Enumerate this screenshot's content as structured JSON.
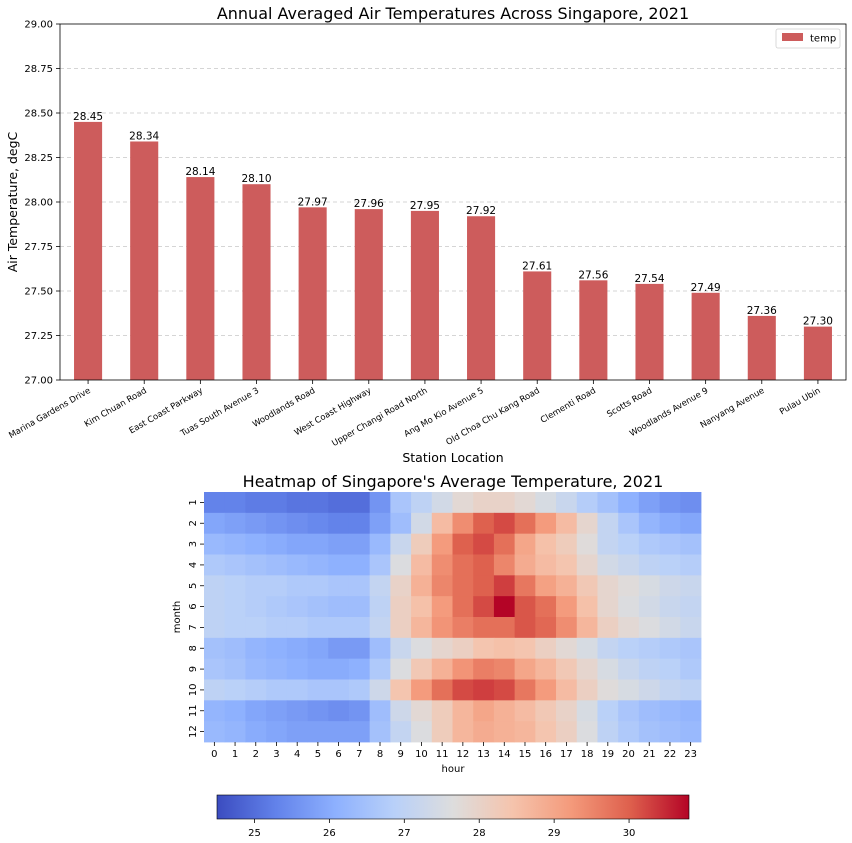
{
  "chart_data": [
    {
      "type": "bar",
      "title": "Annual Averaged Air Temperatures Across Singapore, 2021",
      "xlabel": "Station Location",
      "ylabel": "Air Temperature, degC",
      "ylim": [
        27.0,
        29.0
      ],
      "yticks": [
        "27.00",
        "27.25",
        "27.50",
        "27.75",
        "28.00",
        "28.25",
        "28.50",
        "28.75",
        "29.00"
      ],
      "grid": true,
      "legend": {
        "position": "top-right",
        "entries": [
          "temp"
        ]
      },
      "bar_color": "#cd5c5c",
      "categories": [
        "Marina Gardens Drive",
        "Kim Chuan Road",
        "East Coast Parkway",
        "Tuas South Avenue 3",
        "Woodlands Road",
        "West Coast Highway",
        "Upper Changi Road North",
        "Ang Mo Kio Avenue 5",
        "Old Choa Chu Kang Road",
        "Clementi Road",
        "Scotts Road",
        "Woodlands Avenue 9",
        "Nanyang Avenue",
        "Pulau Ubin"
      ],
      "values": [
        28.45,
        28.34,
        28.14,
        28.1,
        27.97,
        27.96,
        27.95,
        27.92,
        27.61,
        27.56,
        27.54,
        27.49,
        27.36,
        27.3
      ],
      "value_labels": [
        "28.45",
        "28.34",
        "28.14",
        "28.10",
        "27.97",
        "27.96",
        "27.95",
        "27.92",
        "27.61",
        "27.56",
        "27.54",
        "27.49",
        "27.36",
        "27.30"
      ]
    },
    {
      "type": "heatmap",
      "title": "Heatmap of Singapore's Average Temperature, 2021",
      "xlabel": "hour",
      "ylabel": "month",
      "x": [
        "0",
        "1",
        "2",
        "3",
        "4",
        "5",
        "6",
        "7",
        "8",
        "9",
        "10",
        "11",
        "12",
        "13",
        "14",
        "15",
        "16",
        "17",
        "18",
        "19",
        "20",
        "21",
        "22",
        "23"
      ],
      "y": [
        "1",
        "2",
        "3",
        "4",
        "5",
        "6",
        "7",
        "8",
        "9",
        "10",
        "11",
        "12"
      ],
      "colormap": "coolwarm",
      "vmin": 24.5,
      "vmax": 30.8,
      "colorbar_ticks": [
        "25",
        "26",
        "27",
        "28",
        "29",
        "30"
      ],
      "values": [
        [
          25.3,
          25.3,
          25.2,
          25.2,
          25.1,
          25.1,
          25.0,
          25.0,
          25.6,
          26.6,
          27.0,
          27.4,
          27.8,
          28.0,
          28.0,
          27.8,
          27.5,
          27.2,
          26.8,
          26.5,
          26.1,
          25.8,
          25.6,
          25.5
        ],
        [
          25.9,
          25.8,
          25.7,
          25.6,
          25.5,
          25.4,
          25.3,
          25.3,
          25.8,
          26.4,
          27.4,
          28.6,
          29.4,
          30.0,
          30.2,
          29.8,
          29.2,
          28.6,
          27.9,
          27.1,
          26.6,
          26.2,
          26.0,
          25.9
        ],
        [
          26.3,
          26.2,
          26.1,
          26.0,
          25.9,
          25.9,
          25.8,
          25.8,
          26.3,
          27.2,
          28.2,
          29.2,
          30.0,
          30.2,
          29.8,
          29.0,
          28.5,
          28.2,
          27.7,
          27.1,
          26.9,
          26.7,
          26.6,
          26.5
        ],
        [
          26.7,
          26.6,
          26.5,
          26.4,
          26.3,
          26.2,
          26.1,
          26.1,
          26.6,
          27.6,
          28.6,
          29.4,
          29.8,
          30.0,
          29.5,
          28.9,
          28.6,
          28.4,
          27.9,
          27.4,
          27.2,
          27.0,
          26.9,
          26.8
        ],
        [
          27.0,
          26.9,
          26.8,
          26.8,
          26.7,
          26.7,
          26.6,
          26.6,
          27.1,
          28.0,
          28.8,
          29.5,
          29.8,
          30.0,
          30.3,
          29.7,
          29.1,
          28.8,
          28.3,
          27.9,
          27.7,
          27.5,
          27.3,
          27.2
        ],
        [
          27.0,
          26.9,
          26.8,
          26.7,
          26.6,
          26.5,
          26.4,
          26.4,
          27.0,
          28.1,
          28.5,
          29.2,
          29.8,
          30.2,
          30.8,
          30.1,
          29.8,
          29.2,
          28.5,
          27.9,
          27.6,
          27.4,
          27.2,
          27.1
        ],
        [
          27.0,
          26.9,
          26.9,
          26.8,
          26.8,
          26.7,
          26.7,
          26.7,
          27.1,
          28.1,
          28.7,
          29.3,
          29.6,
          29.8,
          29.8,
          30.1,
          29.9,
          29.4,
          28.7,
          28.1,
          27.8,
          27.6,
          27.4,
          27.2
        ],
        [
          26.5,
          26.4,
          26.2,
          26.1,
          26.0,
          25.9,
          25.7,
          25.7,
          26.4,
          27.2,
          27.6,
          27.9,
          28.1,
          28.4,
          28.5,
          28.4,
          28.1,
          27.8,
          27.5,
          27.1,
          26.9,
          26.8,
          26.7,
          26.6
        ],
        [
          26.6,
          26.5,
          26.3,
          26.2,
          26.1,
          26.0,
          26.0,
          26.1,
          26.7,
          27.6,
          28.3,
          28.8,
          29.3,
          29.6,
          29.5,
          29.0,
          28.7,
          28.3,
          27.9,
          27.5,
          27.2,
          27.0,
          26.9,
          26.7
        ],
        [
          27.0,
          26.9,
          26.8,
          26.7,
          26.7,
          26.6,
          26.6,
          26.7,
          27.3,
          28.4,
          29.2,
          29.8,
          30.2,
          30.3,
          30.2,
          29.7,
          29.2,
          28.6,
          28.1,
          27.7,
          27.5,
          27.3,
          27.1,
          27.0
        ],
        [
          26.2,
          26.1,
          25.9,
          25.8,
          25.7,
          25.6,
          25.5,
          25.6,
          26.4,
          27.3,
          27.8,
          28.2,
          28.7,
          29.0,
          28.8,
          28.6,
          28.3,
          28.0,
          27.5,
          26.9,
          26.6,
          26.4,
          26.3,
          26.2
        ],
        [
          26.3,
          26.2,
          26.0,
          25.9,
          25.8,
          25.8,
          25.8,
          25.8,
          26.5,
          27.1,
          27.6,
          28.2,
          28.7,
          28.9,
          28.8,
          28.7,
          28.4,
          28.1,
          27.6,
          27.0,
          26.7,
          26.5,
          26.4,
          26.3
        ]
      ]
    }
  ]
}
